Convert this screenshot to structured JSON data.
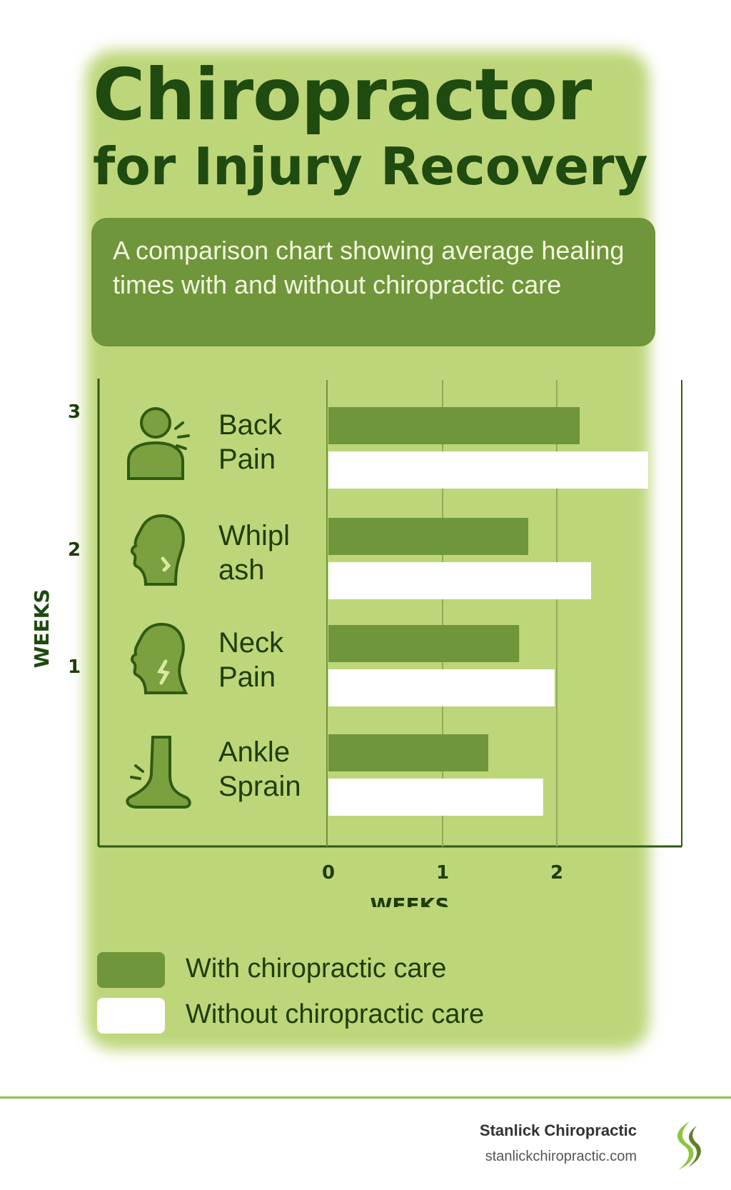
{
  "header": {
    "title_line1": "Chiropractor",
    "title_line2": "for Injury Recovery",
    "subtitle": "A comparison chart showing average healing times with and without chiropractic care"
  },
  "chart_data": {
    "type": "bar",
    "orientation": "horizontal",
    "categories": [
      "Back Pain",
      "Whiplash",
      "Neck Pain",
      "Ankle Sprain"
    ],
    "category_labels": [
      [
        "Back",
        "Pain"
      ],
      [
        "Whipl",
        "ash"
      ],
      [
        "Neck",
        "Pain"
      ],
      [
        "Ankle",
        "Sprain"
      ]
    ],
    "category_icons": [
      "back-pain-icon",
      "whiplash-icon",
      "neck-pain-icon",
      "ankle-sprain-icon"
    ],
    "series": [
      {
        "name": "With chiropractic care",
        "values": [
          2.2,
          1.75,
          1.67,
          1.4
        ],
        "color": "#6f963a"
      },
      {
        "name": "Without chiropractic care",
        "values": [
          2.8,
          2.3,
          1.98,
          1.88
        ],
        "color": "#ffffff"
      }
    ],
    "xlabel": "WEEKS",
    "ylabel": "WEEKS",
    "x_ticks": [
      "0",
      "1",
      "2"
    ],
    "y_ticks": [
      "3",
      "2",
      "1"
    ],
    "xlim": [
      0,
      3
    ],
    "grid": true,
    "legend_position": "bottom"
  },
  "legend": {
    "with_label": "With chiropractic care",
    "without_label": "Without chiropractic care"
  },
  "footer": {
    "brand": "Stanlick Chiropractic",
    "url": "stanlickchiropractic.com"
  },
  "colors": {
    "background": "#bdd679",
    "accent": "#6f963a",
    "dark_text": "#1f4a10",
    "footer_line": "#8cc63f"
  }
}
